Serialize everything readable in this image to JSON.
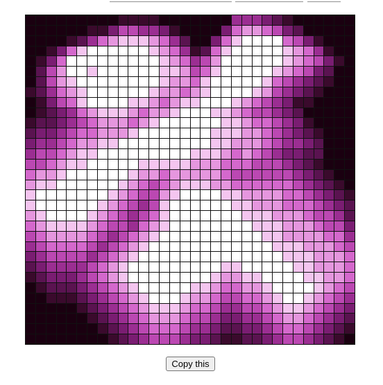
{
  "copy_button": {
    "label": "Copy this"
  },
  "palette": [
    "#1a0010",
    "#3a0a2c",
    "#5a1350",
    "#7a1d72",
    "#9b2e92",
    "#bb48b2",
    "#d468cc",
    "#e596de",
    "#f4c5ef",
    "#ffffff"
  ],
  "grid": {
    "size": 32,
    "rows": [
      "00000000011110000000444321000000",
      "00000011355443100003677653200000",
      "00001246788876420036899996531000",
      "00136899999987641268999998764100",
      "01369999999998764579999998765310",
      "02579989999998875689999987653200",
      "02578999999998776899999865432100",
      "12467899999987767899998754321000",
      "01356899998876788999876543110000",
      "01234678887677899988765543200000",
      "12234567776789999998876654310000",
      "23345667778999999988877654321000",
      "34456778899999999988777654432000",
      "45567889999999998887676543322000",
      "55678899999888887776665554321000",
      "67789999998776777776555555432100",
      "78899999987656788877666666543210",
      "89999999876557899998877776654321",
      "89999998765458999999887776665432",
      "78999987654568999999988877765542",
      "67888876554678999999998887776553",
      "56777765456789999999999887777664",
      "45666654567899999999999988877765",
      "34555545678999999999999998887776",
      "23444456789999999998899999887776",
      "12333456789999999987788999988776",
      "01222345678999998876677899998765",
      "00111234567899987765566789987654",
      "00000123456788876654455678876543",
      "00000012345677765543344567765432",
      "00000001234566654432233456654321",
      "00000000123455543321122345543210"
    ]
  }
}
